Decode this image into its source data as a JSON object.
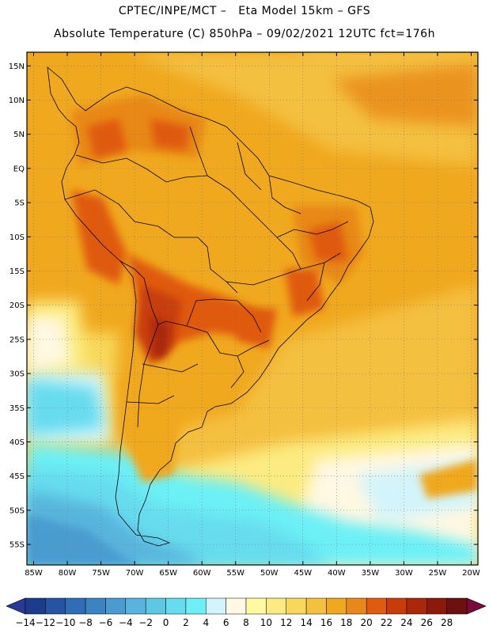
{
  "header": {
    "line1": "CPTEC/INPE/MCT –   Eta Model 15km – GFS",
    "line2": "Absolute Temperature (C) 850hPa – 09/02/2021 12UTC fct=176h"
  },
  "map": {
    "lon_range": [
      -86,
      -19
    ],
    "lat_range": [
      -58,
      17
    ],
    "lat_labels": [
      "15N",
      "10N",
      "5N",
      "EQ",
      "5S",
      "10S",
      "15S",
      "20S",
      "25S",
      "30S",
      "35S",
      "40S",
      "45S",
      "50S",
      "55S"
    ],
    "lat_values": [
      15,
      10,
      5,
      0,
      -5,
      -10,
      -15,
      -20,
      -25,
      -30,
      -35,
      -40,
      -45,
      -50,
      -55
    ],
    "lon_labels": [
      "85W",
      "80W",
      "75W",
      "70W",
      "65W",
      "60W",
      "55W",
      "50W",
      "45W",
      "40W",
      "35W",
      "30W",
      "25W",
      "20W"
    ],
    "lon_values": [
      -85,
      -80,
      -75,
      -70,
      -65,
      -60,
      -55,
      -50,
      -45,
      -40,
      -35,
      -30,
      -25,
      -20
    ]
  },
  "colorbar": {
    "labels": [
      "-14",
      "-12",
      "-10",
      "-8",
      "-6",
      "-4",
      "-2",
      "0",
      "2",
      "4",
      "6",
      "8",
      "10",
      "12",
      "14",
      "16",
      "18",
      "20",
      "22",
      "24",
      "26",
      "28"
    ],
    "colors": [
      "#1e3c8c",
      "#2554a0",
      "#2f6db4",
      "#3a84c2",
      "#4a9cd0",
      "#58b4dc",
      "#5cc8e4",
      "#66dcee",
      "#6cf0f6",
      "#d2f4fa",
      "#fff8e2",
      "#fffaa0",
      "#fceb80",
      "#f8d85a",
      "#f4c040",
      "#f0a81e",
      "#e88818",
      "#e05a10",
      "#c83c0a",
      "#a82808",
      "#8c1a0a",
      "#6c1010"
    ],
    "low_color": "#283a96",
    "high_color": "#780a3c"
  }
}
